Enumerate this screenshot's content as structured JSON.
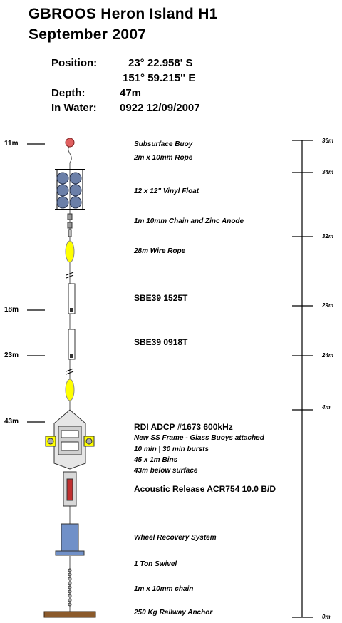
{
  "header": {
    "title_line1": "GBROOS Heron Island H1",
    "title_line2": "September 2007",
    "position_label": "Position:",
    "lat": "23° 22.958' S",
    "lon": "151° 59.215'' E",
    "depth_label": "Depth:",
    "depth_value": "47m",
    "in_water_label": "In Water:",
    "in_water_value": "0922 12/09/2007"
  },
  "components": [
    "Subsurface Buoy",
    "2m x 10mm Rope",
    "12 x 12\" Vinyl Float",
    "1m 10mm Chain and Zinc Anode",
    "28m Wire Rope",
    "SBE39 1525T",
    "SBE39 0918T",
    "RDI ADCP #1673 600kHz",
    "New SS Frame - Glass Buoys attached",
    "10 min | 30 min bursts",
    "45 x 1m Bins",
    "43m below surface",
    "Acoustic Release ACR754 10.0 B/D",
    "Wheel Recovery System",
    "1 Ton Swivel",
    "1m x 10mm chain",
    "250 Kg Railway Anchor"
  ],
  "depth_markers": [
    "11m",
    "18m",
    "23m",
    "43m"
  ],
  "height_scale": [
    "36m",
    "34m",
    "32m",
    "29m",
    "24m",
    "4m",
    "0m"
  ],
  "colors": {
    "float": "#6b7fa8",
    "buoy": "#e06060",
    "link": "#ffff00",
    "adcp_frame": "#d8d8d8",
    "release": "#c03030",
    "wheel": "#7090c8",
    "anchor": "#8b5a2b"
  }
}
